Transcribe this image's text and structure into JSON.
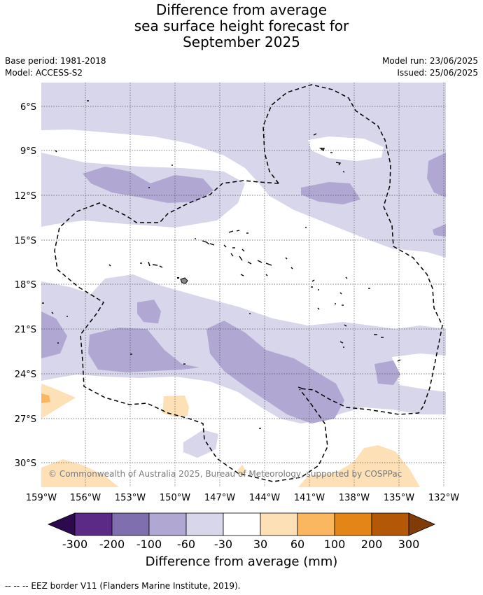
{
  "title": {
    "line1": "Difference from average",
    "line2": "sea surface height forecast for",
    "line3": "September 2025"
  },
  "meta": {
    "base_period": "Base period: 1981-2018",
    "model": "Model: ACCESS-S2",
    "model_run": "Model run: 23/06/2025",
    "issued": "Issued: 25/06/2025"
  },
  "map": {
    "lat_labels": [
      "6°S",
      "9°S",
      "12°S",
      "15°S",
      "18°S",
      "21°S",
      "24°S",
      "27°S",
      "30°S"
    ],
    "lon_labels": [
      "159°W",
      "156°W",
      "153°W",
      "150°W",
      "147°W",
      "144°W",
      "141°W",
      "138°W",
      "135°W",
      "132°W"
    ],
    "copyright": "© Commonwealth of Australia 2025, Bureau of Meteorology, supported by COSPPac",
    "colors": {
      "neg_300": "#2d0a4e",
      "neg_200": "#5b2a86",
      "neg_100": "#7f6fae",
      "neg_60": "#b0a8d2",
      "neg_30": "#d7d6ea",
      "neutral": "#ffffff",
      "pos_30": "#fde0b6",
      "pos_60": "#fbb660",
      "pos_100": "#e48617",
      "pos_200": "#b35806",
      "pos_300": "#7f3b08"
    }
  },
  "colorbar": {
    "tick_labels": [
      "-300",
      "-200",
      "-100",
      "-60",
      "-30",
      "30",
      "60",
      "100",
      "200",
      "300"
    ],
    "title": "Difference from average (mm)"
  },
  "footnote": "--  --  -- EEZ border V11 (Flanders Marine Institute, 2019)."
}
